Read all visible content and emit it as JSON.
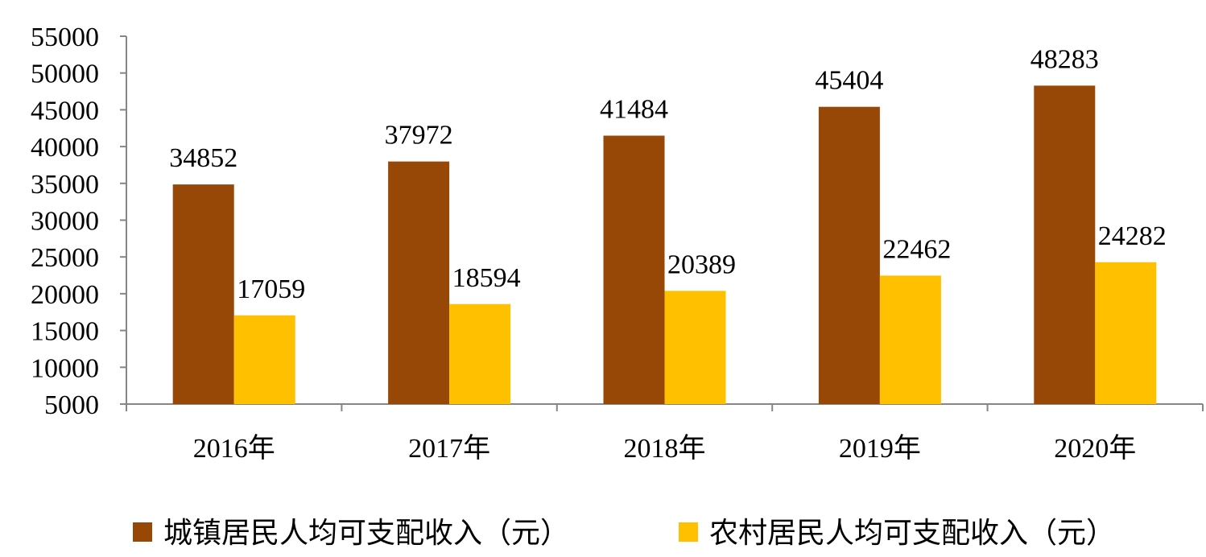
{
  "chart_data": {
    "type": "bar",
    "categories": [
      "2016年",
      "2017年",
      "2018年",
      "2019年",
      "2020年"
    ],
    "series": [
      {
        "name": "城镇居民人均可支配收入（元）",
        "values": [
          34852,
          37972,
          41484,
          45404,
          48283
        ],
        "color": "#974706"
      },
      {
        "name": "农村居民人均可支配收入（元）",
        "values": [
          17059,
          18594,
          20389,
          22462,
          24282
        ],
        "color": "#FFC000"
      }
    ],
    "ylim": [
      5000,
      55000
    ],
    "yticks": [
      5000,
      10000,
      15000,
      20000,
      25000,
      30000,
      35000,
      40000,
      45000,
      50000,
      55000
    ],
    "grid": false,
    "legend_position": "bottom",
    "title": "",
    "xlabel": "",
    "ylabel": ""
  }
}
